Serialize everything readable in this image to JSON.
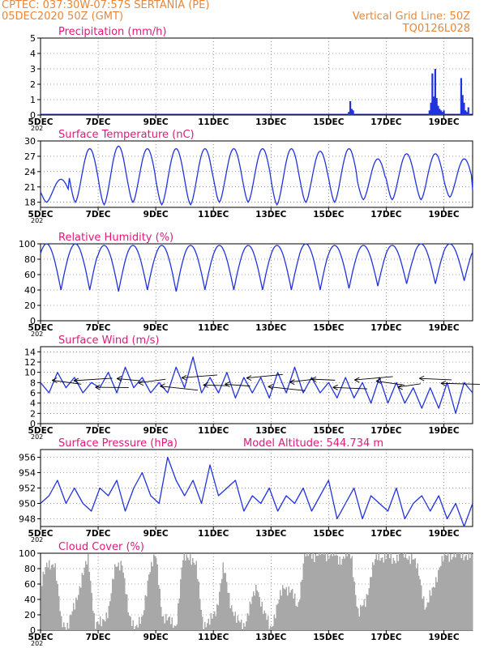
{
  "header": {
    "line1_left": "CPTEC:   037:30W-07:57S   SERTANIA (PE)",
    "line2_left": "05DEC2020 50Z (GMT)",
    "line2_right": "Vertical Grid Line: 50Z",
    "line3_right": "TQ0126L028"
  },
  "colors": {
    "header": "#e8873a",
    "title": "#e0197a",
    "line": "#2233dd",
    "bar": "#2233dd",
    "cloud": "#a8a8a8",
    "wind_arrow": "#000000"
  },
  "x_axis": {
    "tick_labels": [
      "5DEC",
      "7DEC",
      "9DEC",
      "11DEC",
      "13DEC",
      "15DEC",
      "17DEC",
      "19DEC"
    ],
    "start_day": 5,
    "end_day": 20,
    "year_stub": "202"
  },
  "chart_data": [
    {
      "type": "bar",
      "title": "Precipitation (mm/h)",
      "ylim": [
        0,
        5
      ],
      "yticks": [
        "0",
        "1",
        "2",
        "3",
        "4",
        "5"
      ],
      "x_unit": "day of December 2020",
      "x": [
        15.7,
        15.75,
        15.8,
        15.85,
        18.5,
        18.55,
        18.6,
        18.65,
        18.7,
        18.75,
        18.8,
        18.85,
        18.9,
        18.95,
        19.0,
        19.6,
        19.65,
        19.7,
        19.75,
        19.8,
        19.85
      ],
      "values": [
        0.2,
        0.9,
        0.4,
        0.3,
        0.3,
        0.8,
        2.7,
        1.2,
        3.0,
        1.1,
        0.6,
        0.4,
        0.3,
        0.2,
        0.3,
        2.4,
        1.3,
        0.8,
        0.3,
        0.2,
        0.5
      ]
    },
    {
      "type": "line",
      "title": "Surface Temperature (nC)",
      "ylim": [
        17,
        30
      ],
      "yticks": [
        "18",
        "21",
        "24",
        "27",
        "30"
      ],
      "x_unit": "day of December 2020",
      "daily_max": [
        22.5,
        28.5,
        29.0,
        28.5,
        28.5,
        28.5,
        28.5,
        28.5,
        28.5,
        28.0,
        28.5,
        26.5,
        27.5,
        27.5,
        26.5,
        22.0
      ],
      "daily_min": [
        18.0,
        18.0,
        17.5,
        18.0,
        17.5,
        17.5,
        18.0,
        18.0,
        17.5,
        18.0,
        18.0,
        18.5,
        18.5,
        18.5,
        19.0,
        19.0
      ]
    },
    {
      "type": "line",
      "title": "Relative Humidity (%)",
      "ylim": [
        0,
        100
      ],
      "yticks": [
        "0",
        "20",
        "40",
        "60",
        "80",
        "100"
      ],
      "x_unit": "day of December 2020",
      "daily_max": [
        100,
        100,
        98,
        98,
        98,
        98,
        98,
        98,
        98,
        100,
        98,
        98,
        98,
        100,
        100,
        98
      ],
      "daily_min": [
        40,
        40,
        38,
        40,
        38,
        40,
        40,
        40,
        40,
        40,
        42,
        45,
        48,
        48,
        52,
        55
      ]
    },
    {
      "type": "line",
      "title": "Surface Wind (m/s)",
      "ylim": [
        0,
        15
      ],
      "yticks": [
        "0",
        "2",
        "4",
        "6",
        "8",
        "10",
        "12",
        "14"
      ],
      "x_unit": "day of December 2020",
      "series_y": [
        8,
        6,
        10,
        7,
        9,
        6,
        8,
        7,
        10,
        6,
        11,
        7,
        9,
        6,
        8,
        6,
        11,
        7,
        13,
        6,
        9,
        6,
        10,
        5,
        9,
        6,
        9,
        5,
        10,
        6,
        11,
        6,
        9,
        6,
        8,
        5,
        9,
        5,
        8,
        4,
        9,
        4,
        8,
        4,
        7,
        3,
        7,
        3,
        8,
        2,
        8,
        6
      ],
      "wind_arrows_note": "arrows point west"
    },
    {
      "type": "line",
      "title": "Surface Pressure (hPa)",
      "annotation": "Model Altitude: 544.734 m",
      "ylim": [
        947,
        957
      ],
      "yticks": [
        "948",
        "950",
        "952",
        "954",
        "956"
      ],
      "x_unit": "day of December 2020",
      "series_y": [
        950,
        951,
        953,
        950,
        952,
        950,
        949,
        952,
        951,
        953,
        949,
        952,
        954,
        951,
        950,
        956,
        953,
        951,
        953,
        950,
        955,
        951,
        952,
        953,
        949,
        951,
        950,
        952,
        949,
        951,
        950,
        952,
        949,
        951,
        953,
        948,
        950,
        952,
        948,
        951,
        950,
        949,
        952,
        948,
        950,
        951,
        949,
        951,
        948,
        950,
        947,
        950
      ]
    },
    {
      "type": "bar",
      "title": "Cloud Cover (%)",
      "ylim": [
        0,
        100
      ],
      "yticks": [
        "0",
        "20",
        "40",
        "60",
        "80",
        "100"
      ],
      "x_unit": "day of December 2020",
      "values": [
        60,
        85,
        90,
        10,
        8,
        30,
        70,
        90,
        10,
        6,
        30,
        80,
        92,
        15,
        8,
        10,
        80,
        95,
        20,
        10,
        8,
        90,
        100,
        80,
        10,
        8,
        30,
        80,
        40,
        10,
        8,
        30,
        60,
        20,
        5,
        30,
        60,
        50,
        30,
        95,
        100,
        98,
        100,
        100,
        92,
        98,
        95,
        20,
        35,
        80,
        96,
        98,
        90,
        100,
        95,
        98,
        70,
        30,
        50,
        85,
        96,
        100,
        98,
        100,
        92
      ]
    }
  ]
}
